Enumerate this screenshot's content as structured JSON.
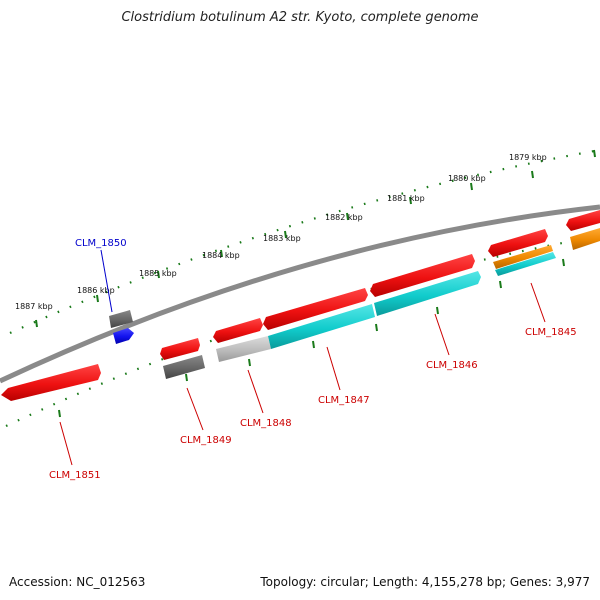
{
  "title": "Clostridium botulinum A2 str. Kyoto, complete genome",
  "footer": {
    "accession": "Accession: NC_012563",
    "summary": "Topology: circular; Length: 4,155,278 bp; Genes: 3,977"
  },
  "colors": {
    "backbone": "#8a8a8a",
    "tick": "#1a7a1a",
    "label_red": "#cc0000",
    "label_blue": "#0000cc",
    "gene_red": "#ee1111",
    "gene_cyan": "#11cccc",
    "gene_gray_dark": "#666666",
    "gene_gray_light": "#bbbbbb",
    "gene_blue": "#1111ee",
    "gene_orange": "#ee8800"
  },
  "diagram": {
    "kbp_labels": [
      "1879 kbp",
      "1880 kbp",
      "1881 kbp",
      "1882 kbp",
      "1883 kbp",
      "1884 kbp",
      "1885 kbp",
      "1886 kbp",
      "1887 kbp"
    ],
    "gene_labels": [
      {
        "name": "CLM_1845",
        "color": "red"
      },
      {
        "name": "CLM_1846",
        "color": "red"
      },
      {
        "name": "CLM_1847",
        "color": "red"
      },
      {
        "name": "CLM_1848",
        "color": "red"
      },
      {
        "name": "CLM_1849",
        "color": "red"
      },
      {
        "name": "CLM_1850",
        "color": "blue"
      },
      {
        "name": "CLM_1851",
        "color": "red"
      }
    ]
  }
}
